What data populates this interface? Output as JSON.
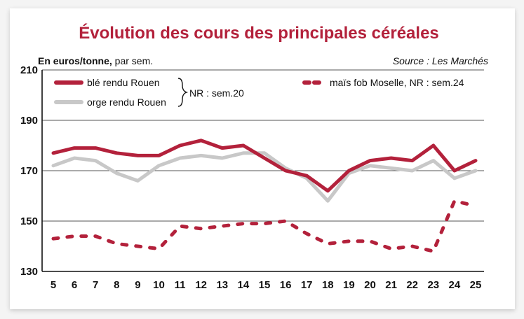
{
  "chart_data": {
    "type": "line",
    "title": "Évolution des cours des principales céréales",
    "unit_bold": "En euros/tonne,",
    "unit_rest": " par sem.",
    "source": "Source : Les Marchés",
    "x": [
      5,
      6,
      7,
      8,
      9,
      10,
      11,
      12,
      13,
      14,
      15,
      16,
      17,
      18,
      19,
      20,
      21,
      22,
      23,
      24,
      25
    ],
    "x_tick_labels": [
      "5",
      "6",
      "7",
      "8",
      "9",
      "10",
      "11",
      "12",
      "13",
      "14",
      "15",
      "16",
      "17",
      "18",
      "19",
      "20",
      "21",
      "22",
      "23",
      "24",
      "25"
    ],
    "y_ticks": [
      "210",
      "190",
      "170",
      "150",
      "130"
    ],
    "ylim": [
      130,
      210
    ],
    "grid": true,
    "bracket_label": "NR : sem.20",
    "series": [
      {
        "name": "orge rendu Rouen",
        "color": "#c8c8c8",
        "style": "solid",
        "values": [
          172,
          175,
          174,
          169,
          166,
          172,
          175,
          176,
          175,
          177,
          177,
          171,
          167,
          158,
          169,
          172,
          171,
          170,
          174,
          167,
          170
        ]
      },
      {
        "name": "blé rendu Rouen",
        "color": "#b3213b",
        "style": "solid",
        "values": [
          177,
          179,
          179,
          177,
          176,
          176,
          180,
          182,
          179,
          180,
          175,
          170,
          168,
          162,
          170,
          174,
          175,
          174,
          180,
          170,
          174
        ]
      },
      {
        "name": "maïs fob Moselle, NR : sem.24",
        "color": "#b3213b",
        "style": "dashed",
        "values": [
          143,
          144,
          144,
          141,
          140,
          139,
          148,
          147,
          148,
          149,
          149,
          150,
          145,
          141,
          142,
          142,
          139,
          140,
          138,
          158,
          156
        ]
      }
    ]
  }
}
